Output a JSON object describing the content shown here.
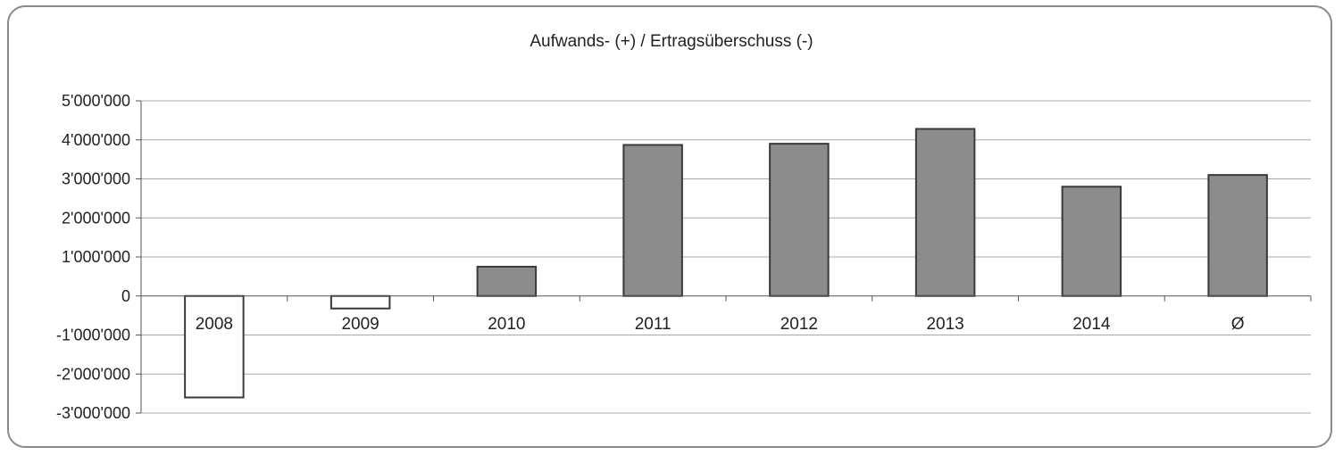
{
  "chart_data": {
    "type": "bar",
    "title": "Aufwands- (+) / Ertragsüberschuss (-)",
    "xlabel": "",
    "ylabel": "",
    "categories": [
      "2008",
      "2009",
      "2010",
      "2011",
      "2012",
      "2013",
      "2014",
      "Ø"
    ],
    "values": [
      -2600000,
      -320000,
      750000,
      3870000,
      3900000,
      4280000,
      2800000,
      3100000
    ],
    "ylim": [
      -3000000,
      5000000
    ],
    "yticks": [
      5000000,
      4000000,
      3000000,
      2000000,
      1000000,
      0,
      -1000000,
      -2000000,
      -3000000
    ],
    "ytick_labels": [
      "5'000'000",
      "4'000'000",
      "3'000'000",
      "2'000'000",
      "1'000'000",
      "0",
      "-1'000'000",
      "-2'000'000",
      "-3'000'000"
    ],
    "grid": true,
    "legend": "none",
    "colors": {
      "positive_fill": "#8c8c8c",
      "negative_fill": "#ffffff",
      "bar_stroke": "#3a3a3a",
      "grid": "#a8a8a8",
      "axis": "#555555"
    }
  }
}
